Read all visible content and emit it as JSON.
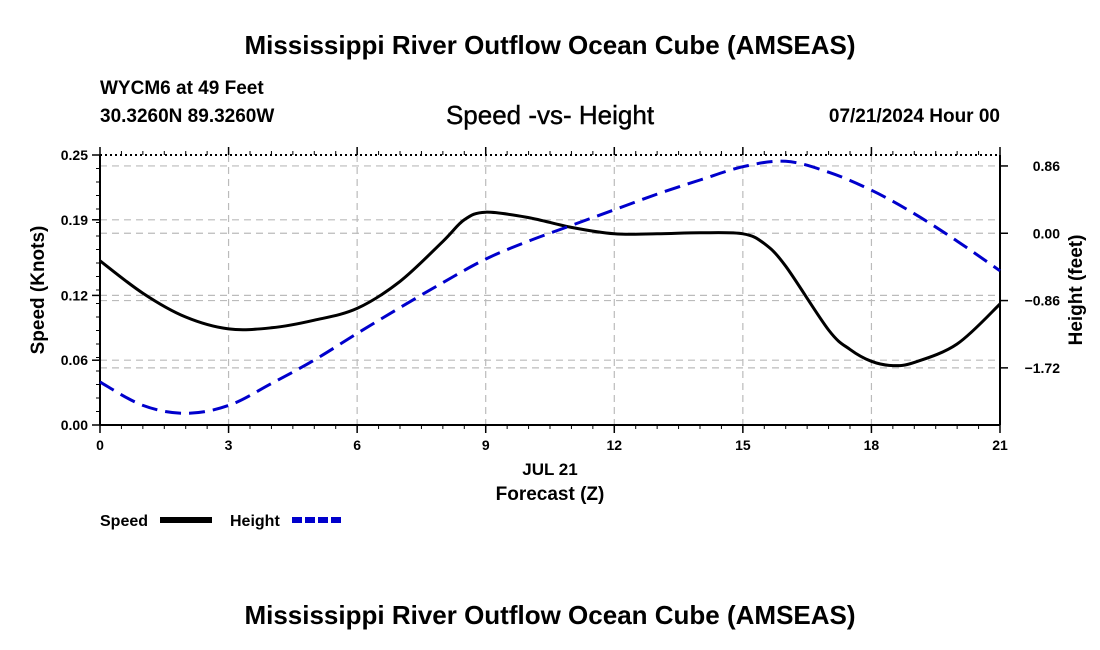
{
  "header": {
    "main_title": "Mississippi River Outflow Ocean Cube (AMSEAS)",
    "station": "WYCM6 at 49 Feet",
    "coords": "30.3260N  89.3260W",
    "chart_title": "Speed -vs- Height",
    "datetime": "07/21/2024 Hour 00"
  },
  "footer": {
    "title": "Mississippi River Outflow Ocean Cube (AMSEAS)"
  },
  "chart_data": {
    "type": "line",
    "title": "Speed -vs- Height",
    "xlabel": "Forecast (Z)",
    "xsublabel": "JUL 21",
    "ylabel": "Speed (Knots)",
    "y2label": "Height (feet)",
    "xlim": [
      0,
      21
    ],
    "ylim": [
      0,
      0.25
    ],
    "y2lim": [
      -2.45,
      1.0
    ],
    "xticks": [
      0,
      3,
      6,
      9,
      12,
      15,
      18,
      21
    ],
    "xtick_labels": [
      "0",
      "3",
      "6",
      "9",
      "12",
      "15",
      "18",
      "21"
    ],
    "yticks": [
      0.0,
      0.06,
      0.12,
      0.19,
      0.25
    ],
    "ytick_labels": [
      "0.00",
      "0.06",
      "0.12",
      "0.19",
      "0.25"
    ],
    "y2ticks": [
      0.86,
      0.0,
      -0.86,
      -1.72
    ],
    "y2tick_labels": [
      "0.86",
      "0.00",
      "−0.86",
      "−1.72"
    ],
    "grid": true,
    "series": [
      {
        "name": "Speed",
        "axis": "left",
        "color": "#000000",
        "style": "solid",
        "x": [
          0,
          1,
          2,
          3,
          4,
          5,
          6,
          7,
          8,
          8.5,
          9,
          10,
          11,
          12,
          13,
          14,
          15,
          15.5,
          16,
          17,
          17.5,
          18,
          18.5,
          19,
          20,
          21
        ],
        "values": [
          0.152,
          0.122,
          0.1,
          0.089,
          0.09,
          0.097,
          0.108,
          0.133,
          0.17,
          0.19,
          0.197,
          0.192,
          0.183,
          0.177,
          0.177,
          0.178,
          0.177,
          0.168,
          0.147,
          0.088,
          0.07,
          0.059,
          0.055,
          0.058,
          0.075,
          0.112
        ]
      },
      {
        "name": "Height",
        "axis": "right",
        "color": "#0000cc",
        "style": "dashed",
        "x": [
          0,
          1,
          2,
          3,
          4,
          5,
          6,
          7,
          8,
          9,
          10,
          11,
          12,
          13,
          14,
          15,
          16,
          17,
          18,
          19,
          20,
          21
        ],
        "values": [
          -1.9,
          -2.2,
          -2.3,
          -2.2,
          -1.92,
          -1.62,
          -1.28,
          -0.95,
          -0.63,
          -0.33,
          -0.1,
          0.1,
          0.3,
          0.5,
          0.68,
          0.85,
          0.92,
          0.78,
          0.55,
          0.25,
          -0.1,
          -0.48
        ]
      }
    ],
    "legend": {
      "position": "bottom-left",
      "entries": [
        "Speed",
        "Height"
      ]
    }
  }
}
